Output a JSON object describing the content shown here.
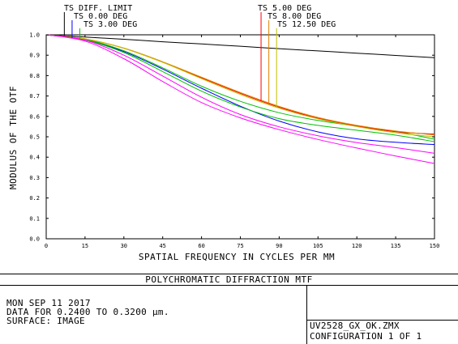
{
  "chart_data": {
    "type": "line",
    "xlabel": "SPATIAL FREQUENCY IN CYCLES PER MM",
    "ylabel": "MODULUS OF THE OTF",
    "xlim": [
      0,
      150
    ],
    "ylim": [
      0.0,
      1.0
    ],
    "x_ticks": [
      "0",
      "15",
      "30",
      "45",
      "60",
      "75",
      "90",
      "105",
      "120",
      "135",
      "150"
    ],
    "y_ticks": [
      "0.0",
      "0.1",
      "0.2",
      "0.3",
      "0.4",
      "0.5",
      "0.6",
      "0.7",
      "0.8",
      "0.9",
      "1.0"
    ],
    "grid": false,
    "x": [
      0,
      15,
      30,
      45,
      60,
      75,
      90,
      105,
      120,
      135,
      150
    ],
    "legend_left": [
      {
        "label": "TS DIFF. LIMIT",
        "color": "#000000",
        "sample_freq": 7
      },
      {
        "label": "TS 0.00 DEG",
        "color": "#0000ff",
        "sample_freq": 10
      },
      {
        "label": "TS 3.00 DEG",
        "color": "#00c000",
        "sample_freq": 13
      }
    ],
    "legend_right": [
      {
        "label": "TS 5.00 DEG",
        "color": "#ff0000",
        "sample_freq": 83
      },
      {
        "label": "TS 8.00 DEG",
        "color": "#e08000",
        "sample_freq": 86
      },
      {
        "label": "TS 12.50 DEG",
        "color": "#c0c000",
        "sample_freq": 89
      }
    ],
    "series": [
      {
        "color": "#000000",
        "values": [
          1.0,
          0.989,
          0.978,
          0.966,
          0.955,
          0.944,
          0.932,
          0.921,
          0.91,
          0.899,
          0.888
        ]
      },
      {
        "color": "#0000ff",
        "values": [
          1.0,
          0.977,
          0.918,
          0.832,
          0.738,
          0.65,
          0.577,
          0.524,
          0.49,
          0.473,
          0.462
        ]
      },
      {
        "color": "#00c000",
        "values": [
          1.0,
          0.975,
          0.913,
          0.82,
          0.724,
          0.646,
          0.589,
          0.556,
          0.532,
          0.508,
          0.476
        ]
      },
      {
        "color": "#00c000",
        "values": [
          1.0,
          0.978,
          0.922,
          0.838,
          0.748,
          0.674,
          0.618,
          0.58,
          0.552,
          0.526,
          0.488
        ]
      },
      {
        "color": "#ff0000",
        "values": [
          1.0,
          0.98,
          0.934,
          0.866,
          0.789,
          0.713,
          0.645,
          0.591,
          0.553,
          0.525,
          0.513
        ]
      },
      {
        "color": "#e08000",
        "values": [
          1.0,
          0.98,
          0.935,
          0.868,
          0.792,
          0.717,
          0.649,
          0.595,
          0.556,
          0.528,
          0.509
        ]
      },
      {
        "color": "#c0c000",
        "values": [
          1.0,
          0.98,
          0.934,
          0.865,
          0.785,
          0.708,
          0.64,
          0.588,
          0.55,
          0.52,
          0.5
        ]
      },
      {
        "color": "#ff00ff",
        "values": [
          1.0,
          0.974,
          0.9,
          0.798,
          0.694,
          0.609,
          0.549,
          0.505,
          0.472,
          0.447,
          0.419
        ]
      },
      {
        "color": "#ff00ff",
        "values": [
          1.0,
          0.969,
          0.883,
          0.771,
          0.668,
          0.593,
          0.535,
          0.487,
          0.445,
          0.406,
          0.369
        ]
      }
    ]
  },
  "footer": {
    "title": "POLYCHROMATIC DIFFRACTION MTF",
    "date": "MON SEP 11 2017",
    "data_range": "DATA FOR 0.2400 TO 0.3200 µm.",
    "surface": "SURFACE: IMAGE",
    "file_name": "UV2528_GX_OK.ZMX",
    "configuration": "CONFIGURATION 1 OF 1"
  },
  "colors": {
    "axis": "#000000",
    "background": "#ffffff"
  }
}
